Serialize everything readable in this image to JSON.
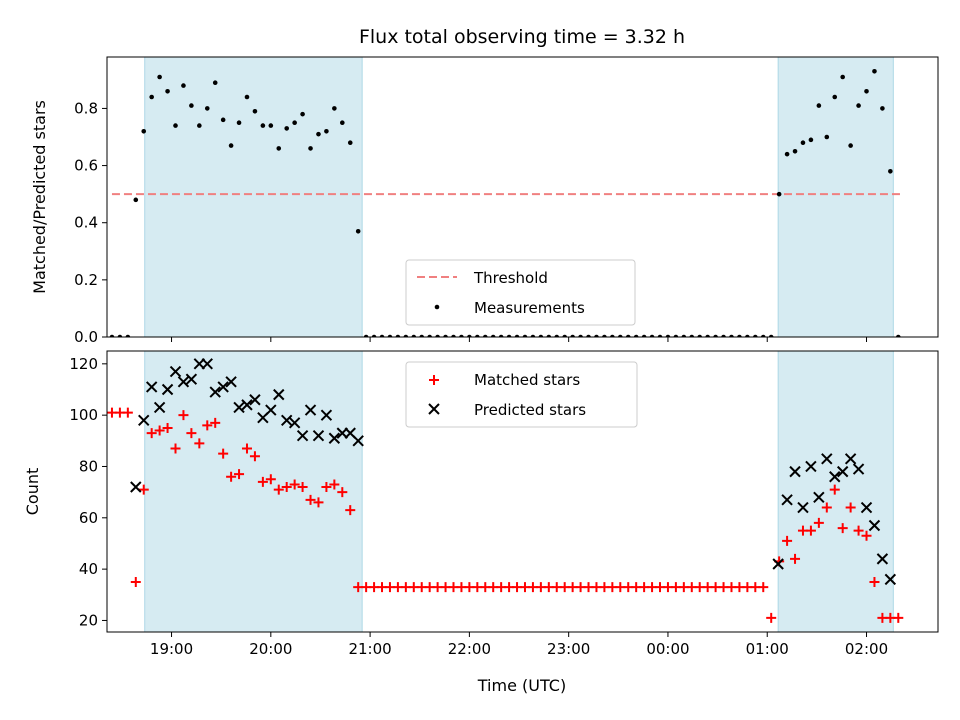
{
  "chart_data": {
    "title": "Flux total observing time = 3.32 h",
    "colors": {
      "shade": "#add8e6",
      "threshold": "#f08080",
      "measurements": "#000000",
      "matched": "#ff0000",
      "predicted": "#000000"
    },
    "x_axis": {
      "label": "Time (UTC)",
      "unit": "hours since 18:00 UTC",
      "ticks": [
        {
          "value": 1,
          "label": "19:00"
        },
        {
          "value": 2,
          "label": "20:00"
        },
        {
          "value": 3,
          "label": "21:00"
        },
        {
          "value": 4,
          "label": "22:00"
        },
        {
          "value": 5,
          "label": "23:00"
        },
        {
          "value": 6,
          "label": "00:00"
        },
        {
          "value": 7,
          "label": "01:00"
        },
        {
          "value": 8,
          "label": "02:00"
        }
      ],
      "xlim": [
        0.35,
        8.72
      ]
    },
    "shaded_intervals": [
      [
        0.73,
        2.92
      ],
      [
        7.11,
        8.27
      ]
    ],
    "panels": [
      {
        "type": "scatter",
        "ylabel": "Matched/Predicted stars",
        "ylim": [
          0,
          0.98
        ],
        "yticks": [
          0,
          0.2,
          0.4,
          0.6,
          0.8
        ],
        "ytick_labels": [
          "0.0",
          "0.2",
          "0.4",
          "0.6",
          "0.8"
        ],
        "threshold": {
          "name": "Threshold",
          "y": 0.5,
          "x_range": [
            0.4,
            8.35
          ]
        },
        "legend": {
          "position": "lower center",
          "entries": [
            "Threshold",
            "Measurements"
          ]
        },
        "measurements": {
          "name": "Measurements",
          "x": [
            0.4,
            0.48,
            0.56,
            0.64,
            0.72,
            0.8,
            0.88,
            0.96,
            1.04,
            1.12,
            1.2,
            1.28,
            1.36,
            1.44,
            1.52,
            1.6,
            1.68,
            1.76,
            1.84,
            1.92,
            2.0,
            2.08,
            2.16,
            2.24,
            2.32,
            2.4,
            2.48,
            2.56,
            2.64,
            2.72,
            2.8,
            2.88,
            2.96,
            3.04,
            3.12,
            3.2,
            3.28,
            3.36,
            3.44,
            3.52,
            3.6,
            3.68,
            3.76,
            3.84,
            3.92,
            4.0,
            4.08,
            4.16,
            4.24,
            4.32,
            4.4,
            4.48,
            4.56,
            4.64,
            4.72,
            4.8,
            4.88,
            4.96,
            5.04,
            5.12,
            5.2,
            5.28,
            5.36,
            5.44,
            5.52,
            5.6,
            5.68,
            5.76,
            5.84,
            5.92,
            6.0,
            6.08,
            6.16,
            6.24,
            6.32,
            6.4,
            6.48,
            6.56,
            6.64,
            6.72,
            6.8,
            6.88,
            6.96,
            7.04,
            7.12,
            7.2,
            7.28,
            7.36,
            7.44,
            7.52,
            7.6,
            7.68,
            7.76,
            7.84,
            7.92,
            8.0,
            8.08,
            8.16,
            8.24,
            8.32
          ],
          "y": [
            0,
            0,
            0,
            0.48,
            0.72,
            0.84,
            0.91,
            0.86,
            0.74,
            0.88,
            0.81,
            0.74,
            0.8,
            0.89,
            0.76,
            0.67,
            0.75,
            0.84,
            0.79,
            0.74,
            0.74,
            0.66,
            0.73,
            0.75,
            0.78,
            0.66,
            0.71,
            0.72,
            0.8,
            0.75,
            0.68,
            0.37,
            0,
            0,
            0,
            0,
            0,
            0,
            0,
            0,
            0,
            0,
            0,
            0,
            0,
            0,
            0,
            0,
            0,
            0,
            0,
            0,
            0,
            0,
            0,
            0,
            0,
            0,
            0,
            0,
            0,
            0,
            0,
            0,
            0,
            0,
            0,
            0,
            0,
            0,
            0,
            0,
            0,
            0,
            0,
            0,
            0,
            0,
            0,
            0,
            0,
            0,
            0,
            0,
            0.5,
            0.64,
            0.65,
            0.68,
            0.69,
            0.81,
            0.7,
            0.84,
            0.91,
            0.67,
            0.81,
            0.86,
            0.93,
            0.8,
            0.58,
            0
          ]
        }
      },
      {
        "type": "scatter",
        "ylabel": "Count",
        "xlabel": "Time (UTC)",
        "ylim": [
          15.5,
          125
        ],
        "yticks": [
          20,
          40,
          60,
          80,
          100,
          120
        ],
        "ytick_labels": [
          "20",
          "40",
          "60",
          "80",
          "100",
          "120"
        ],
        "legend": {
          "position": "upper center",
          "entries": [
            "Matched stars",
            "Predicted stars"
          ]
        },
        "matched": {
          "name": "Matched stars",
          "x": [
            0.4,
            0.48,
            0.56,
            0.64,
            0.72,
            0.8,
            0.88,
            0.96,
            1.04,
            1.12,
            1.2,
            1.28,
            1.36,
            1.44,
            1.52,
            1.6,
            1.68,
            1.76,
            1.84,
            1.92,
            2.0,
            2.08,
            2.16,
            2.24,
            2.32,
            2.4,
            2.48,
            2.56,
            2.64,
            2.72,
            2.8,
            2.88,
            2.96,
            3.04,
            3.12,
            3.2,
            3.28,
            3.36,
            3.44,
            3.52,
            3.6,
            3.68,
            3.76,
            3.84,
            3.92,
            4.0,
            4.08,
            4.16,
            4.24,
            4.32,
            4.4,
            4.48,
            4.56,
            4.64,
            4.72,
            4.8,
            4.88,
            4.96,
            5.04,
            5.12,
            5.2,
            5.28,
            5.36,
            5.44,
            5.52,
            5.6,
            5.68,
            5.76,
            5.84,
            5.92,
            6.0,
            6.08,
            6.16,
            6.24,
            6.32,
            6.4,
            6.48,
            6.56,
            6.64,
            6.72,
            6.8,
            6.88,
            6.96,
            7.04,
            7.12,
            7.2,
            7.28,
            7.36,
            7.44,
            7.52,
            7.6,
            7.68,
            7.76,
            7.84,
            7.92,
            8.0,
            8.08,
            8.16,
            8.24,
            8.32
          ],
          "y": [
            101,
            101,
            101,
            35,
            71,
            93,
            94,
            95,
            87,
            100,
            93,
            89,
            96,
            97,
            85,
            76,
            77,
            87,
            84,
            74,
            75,
            71,
            72,
            73,
            72,
            67,
            66,
            72,
            73,
            70,
            63,
            33,
            33,
            33,
            33,
            33,
            33,
            33,
            33,
            33,
            33,
            33,
            33,
            33,
            33,
            33,
            33,
            33,
            33,
            33,
            33,
            33,
            33,
            33,
            33,
            33,
            33,
            33,
            33,
            33,
            33,
            33,
            33,
            33,
            33,
            33,
            33,
            33,
            33,
            33,
            33,
            33,
            33,
            33,
            33,
            33,
            33,
            33,
            33,
            33,
            33,
            33,
            33,
            21,
            43,
            51,
            44,
            55,
            55,
            58,
            64,
            71,
            56,
            64,
            55,
            53,
            35,
            21,
            21,
            21
          ]
        },
        "predicted": {
          "name": "Predicted stars",
          "x": [
            0.64,
            0.72,
            0.8,
            0.88,
            0.96,
            1.04,
            1.12,
            1.2,
            1.28,
            1.36,
            1.44,
            1.52,
            1.6,
            1.68,
            1.76,
            1.84,
            1.92,
            2.0,
            2.08,
            2.16,
            2.24,
            2.32,
            2.4,
            2.48,
            2.56,
            2.64,
            2.72,
            2.8,
            2.88,
            7.11,
            7.2,
            7.28,
            7.36,
            7.44,
            7.52,
            7.6,
            7.68,
            7.76,
            7.84,
            7.92,
            8.0,
            8.08,
            8.16,
            8.24
          ],
          "y": [
            72,
            98,
            111,
            103,
            110,
            117,
            113,
            114,
            120,
            120,
            109,
            111,
            113,
            103,
            104,
            106,
            99,
            102,
            108,
            98,
            97,
            92,
            102,
            92,
            100,
            91,
            93,
            93,
            90,
            42,
            67,
            78,
            64,
            80,
            68,
            83,
            76,
            78,
            83,
            79,
            64,
            57,
            44,
            36
          ]
        }
      }
    ]
  }
}
